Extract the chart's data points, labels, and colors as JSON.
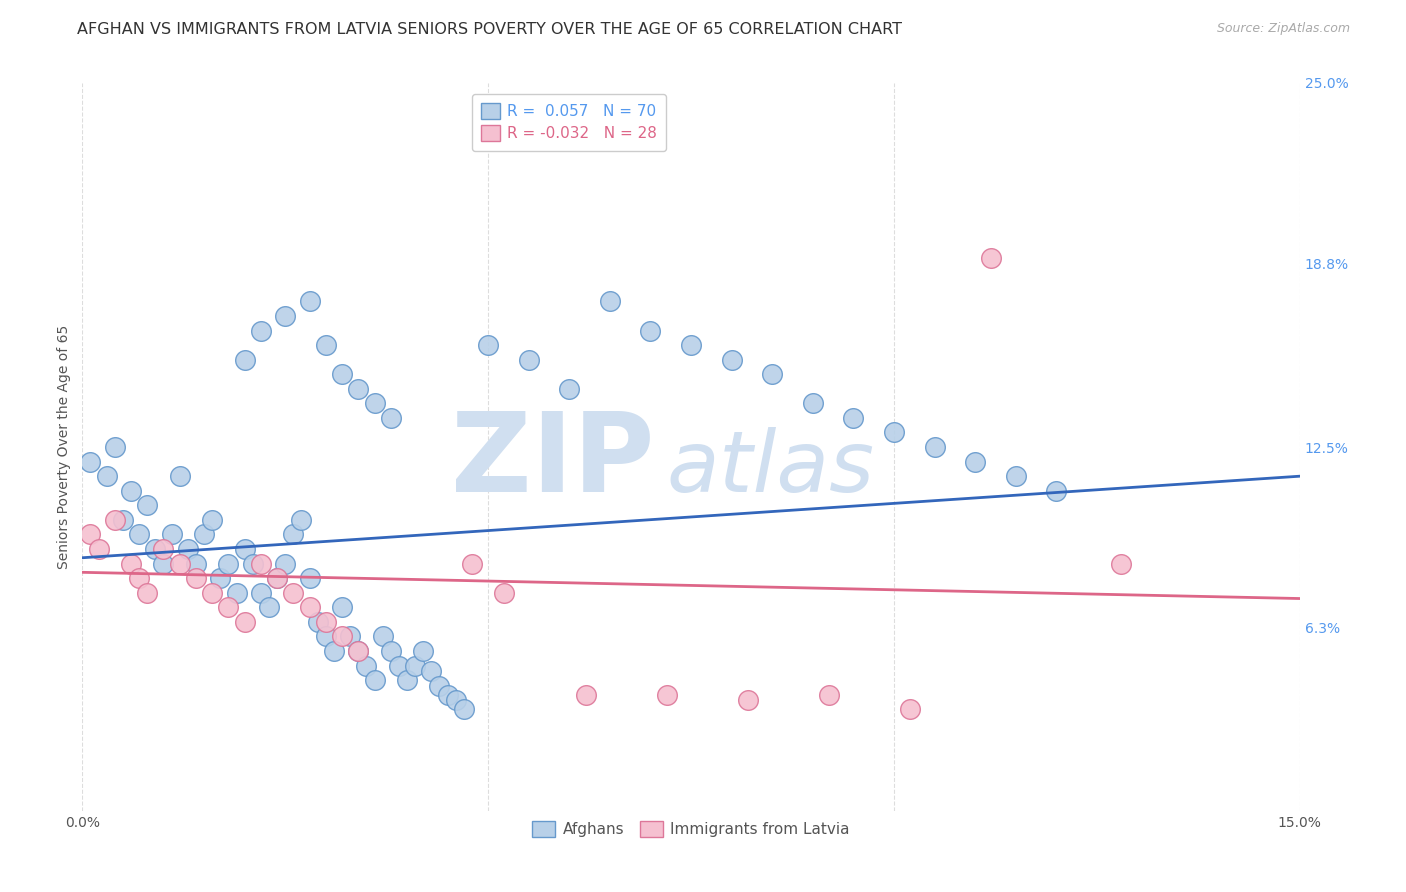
{
  "title": "AFGHAN VS IMMIGRANTS FROM LATVIA SENIORS POVERTY OVER THE AGE OF 65 CORRELATION CHART",
  "source": "Source: ZipAtlas.com",
  "ylabel": "Seniors Poverty Over the Age of 65",
  "xlim": [
    0.0,
    0.15
  ],
  "ylim": [
    0.0,
    0.25
  ],
  "xtick_positions": [
    0.0,
    0.05,
    0.1,
    0.15
  ],
  "xticklabels": [
    "0.0%",
    "",
    "",
    "15.0%"
  ],
  "yticks_right": [
    0.063,
    0.125,
    0.188,
    0.25
  ],
  "yticklabels_right": [
    "6.3%",
    "12.5%",
    "18.8%",
    "25.0%"
  ],
  "blue_R": 0.057,
  "blue_N": 70,
  "pink_R": -0.032,
  "pink_N": 28,
  "blue_color": "#b8d0e8",
  "blue_edge": "#6699cc",
  "pink_color": "#f5c0d0",
  "pink_edge": "#dd7799",
  "blue_line_color": "#3366bb",
  "pink_line_color": "#dd6688",
  "watermark": "ZIPatlas",
  "watermark_color": "#d0dff0",
  "legend_label_blue": "Afghans",
  "legend_label_pink": "Immigrants from Latvia",
  "blue_line_y0": 0.087,
  "blue_line_y1": 0.115,
  "pink_line_y0": 0.082,
  "pink_line_y1": 0.073,
  "blue_scatter_x": [
    0.001,
    0.003,
    0.004,
    0.005,
    0.006,
    0.007,
    0.008,
    0.009,
    0.01,
    0.011,
    0.012,
    0.013,
    0.014,
    0.015,
    0.016,
    0.017,
    0.018,
    0.019,
    0.02,
    0.021,
    0.022,
    0.023,
    0.024,
    0.025,
    0.026,
    0.027,
    0.028,
    0.029,
    0.03,
    0.031,
    0.032,
    0.033,
    0.034,
    0.035,
    0.036,
    0.037,
    0.038,
    0.039,
    0.04,
    0.041,
    0.042,
    0.043,
    0.044,
    0.045,
    0.046,
    0.047,
    0.02,
    0.022,
    0.025,
    0.028,
    0.03,
    0.032,
    0.034,
    0.036,
    0.038,
    0.05,
    0.055,
    0.06,
    0.065,
    0.07,
    0.075,
    0.08,
    0.085,
    0.09,
    0.095,
    0.1,
    0.105,
    0.11,
    0.115,
    0.12
  ],
  "blue_scatter_y": [
    0.12,
    0.115,
    0.125,
    0.1,
    0.11,
    0.095,
    0.105,
    0.09,
    0.085,
    0.095,
    0.115,
    0.09,
    0.085,
    0.095,
    0.1,
    0.08,
    0.085,
    0.075,
    0.09,
    0.085,
    0.075,
    0.07,
    0.08,
    0.085,
    0.095,
    0.1,
    0.08,
    0.065,
    0.06,
    0.055,
    0.07,
    0.06,
    0.055,
    0.05,
    0.045,
    0.06,
    0.055,
    0.05,
    0.045,
    0.05,
    0.055,
    0.048,
    0.043,
    0.04,
    0.038,
    0.035,
    0.155,
    0.165,
    0.17,
    0.175,
    0.16,
    0.15,
    0.145,
    0.14,
    0.135,
    0.16,
    0.155,
    0.145,
    0.175,
    0.165,
    0.16,
    0.155,
    0.15,
    0.14,
    0.135,
    0.13,
    0.125,
    0.12,
    0.115,
    0.11
  ],
  "pink_scatter_x": [
    0.001,
    0.002,
    0.004,
    0.006,
    0.007,
    0.008,
    0.01,
    0.012,
    0.014,
    0.016,
    0.018,
    0.02,
    0.022,
    0.024,
    0.026,
    0.028,
    0.03,
    0.032,
    0.034,
    0.048,
    0.052,
    0.062,
    0.072,
    0.082,
    0.092,
    0.102,
    0.112,
    0.128
  ],
  "pink_scatter_y": [
    0.095,
    0.09,
    0.1,
    0.085,
    0.08,
    0.075,
    0.09,
    0.085,
    0.08,
    0.075,
    0.07,
    0.065,
    0.085,
    0.08,
    0.075,
    0.07,
    0.065,
    0.06,
    0.055,
    0.085,
    0.075,
    0.04,
    0.04,
    0.038,
    0.04,
    0.035,
    0.19,
    0.085
  ],
  "background_color": "#ffffff",
  "grid_color": "#dddddd",
  "title_fontsize": 11.5,
  "axis_label_fontsize": 10,
  "tick_fontsize": 10,
  "legend_fontsize": 11
}
